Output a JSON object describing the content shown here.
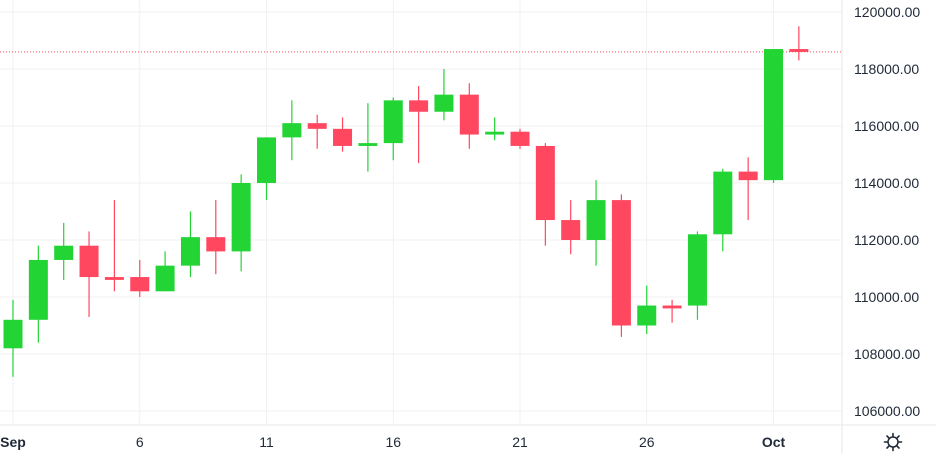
{
  "chart_data": {
    "type": "candlestick",
    "ylim": [
      105000,
      120500
    ],
    "y_ticks": [
      106000,
      108000,
      110000,
      112000,
      114000,
      116000,
      118000,
      120000
    ],
    "y_tick_labels": [
      "106000.00",
      "108000.00",
      "110000.00",
      "112000.00",
      "114000.00",
      "116000.00",
      "118000.00",
      "120000.00"
    ],
    "x_ticks": [
      {
        "day": 1,
        "label": "Sep",
        "bold": true
      },
      {
        "day": 6,
        "label": "6",
        "bold": false
      },
      {
        "day": 11,
        "label": "11",
        "bold": false
      },
      {
        "day": 16,
        "label": "16",
        "bold": false
      },
      {
        "day": 21,
        "label": "21",
        "bold": false
      },
      {
        "day": 26,
        "label": "26",
        "bold": false
      },
      {
        "day": 31,
        "label": "Oct",
        "bold": true
      }
    ],
    "current_price_line": 118600,
    "grid": true,
    "up_color": "#22d434",
    "down_color": "#ff4760",
    "candles": [
      {
        "day": 1,
        "open": 108200,
        "high": 109900,
        "low": 107200,
        "close": 109200
      },
      {
        "day": 2,
        "open": 109200,
        "high": 111800,
        "low": 108400,
        "close": 111300
      },
      {
        "day": 3,
        "open": 111300,
        "high": 112600,
        "low": 110600,
        "close": 111800
      },
      {
        "day": 4,
        "open": 111800,
        "high": 112300,
        "low": 109300,
        "close": 110700
      },
      {
        "day": 5,
        "open": 110700,
        "high": 113400,
        "low": 110200,
        "close": 110600
      },
      {
        "day": 6,
        "open": 110700,
        "high": 111300,
        "low": 110000,
        "close": 110200
      },
      {
        "day": 7,
        "open": 110200,
        "high": 111600,
        "low": 110200,
        "close": 111100
      },
      {
        "day": 8,
        "open": 111100,
        "high": 113000,
        "low": 110700,
        "close": 112100
      },
      {
        "day": 9,
        "open": 112100,
        "high": 113400,
        "low": 110800,
        "close": 111600
      },
      {
        "day": 10,
        "open": 111600,
        "high": 114300,
        "low": 110900,
        "close": 114000
      },
      {
        "day": 11,
        "open": 114000,
        "high": 115600,
        "low": 113400,
        "close": 115600
      },
      {
        "day": 12,
        "open": 115600,
        "high": 116900,
        "low": 114800,
        "close": 116100
      },
      {
        "day": 13,
        "open": 116100,
        "high": 116400,
        "low": 115200,
        "close": 115900
      },
      {
        "day": 14,
        "open": 115900,
        "high": 116300,
        "low": 115100,
        "close": 115300
      },
      {
        "day": 15,
        "open": 115300,
        "high": 116800,
        "low": 114400,
        "close": 115400
      },
      {
        "day": 16,
        "open": 115400,
        "high": 117000,
        "low": 114800,
        "close": 116900
      },
      {
        "day": 17,
        "open": 116900,
        "high": 117400,
        "low": 114700,
        "close": 116500
      },
      {
        "day": 18,
        "open": 116500,
        "high": 118000,
        "low": 116200,
        "close": 117100
      },
      {
        "day": 19,
        "open": 117100,
        "high": 117500,
        "low": 115200,
        "close": 115700
      },
      {
        "day": 20,
        "open": 115700,
        "high": 116300,
        "low": 115500,
        "close": 115800
      },
      {
        "day": 21,
        "open": 115800,
        "high": 115900,
        "low": 115200,
        "close": 115300
      },
      {
        "day": 22,
        "open": 115300,
        "high": 115400,
        "low": 111800,
        "close": 112700
      },
      {
        "day": 23,
        "open": 112700,
        "high": 113400,
        "low": 111500,
        "close": 112000
      },
      {
        "day": 24,
        "open": 112000,
        "high": 114100,
        "low": 111100,
        "close": 113400
      },
      {
        "day": 25,
        "open": 113400,
        "high": 113600,
        "low": 108600,
        "close": 109000
      },
      {
        "day": 26,
        "open": 109000,
        "high": 110400,
        "low": 108700,
        "close": 109700
      },
      {
        "day": 27,
        "open": 109700,
        "high": 109900,
        "low": 109100,
        "close": 109600
      },
      {
        "day": 28,
        "open": 109700,
        "high": 112300,
        "low": 109200,
        "close": 112200
      },
      {
        "day": 29,
        "open": 112200,
        "high": 114500,
        "low": 111600,
        "close": 114400
      },
      {
        "day": 30,
        "open": 114400,
        "high": 114900,
        "low": 112700,
        "close": 114100
      },
      {
        "day": 31,
        "open": 114100,
        "high": 118700,
        "low": 114000,
        "close": 118700
      },
      {
        "day": 32,
        "open": 118700,
        "high": 119500,
        "low": 118300,
        "close": 118600
      }
    ]
  },
  "controls": {
    "settings_icon": "gear-icon"
  }
}
